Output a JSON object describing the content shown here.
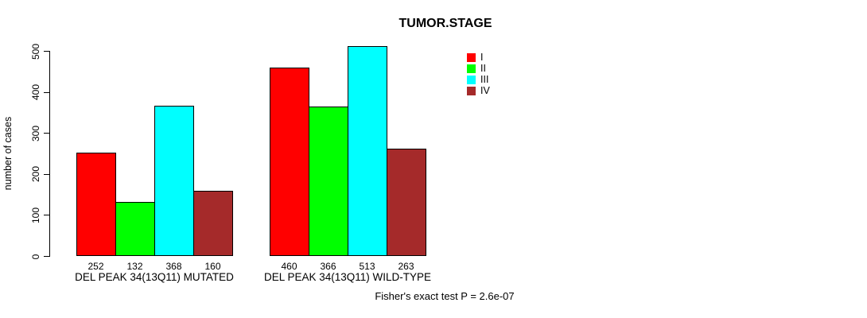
{
  "chart_data": {
    "type": "bar",
    "title": "TUMOR.STAGE",
    "ylabel": "number of cases",
    "xlabel": "",
    "ylim": [
      0,
      550
    ],
    "yticks": [
      0,
      100,
      200,
      300,
      400,
      500
    ],
    "grid": false,
    "legend_position": "top-right-of-plot",
    "series": [
      {
        "name": "I",
        "color": "#ff0000"
      },
      {
        "name": "II",
        "color": "#00ff00"
      },
      {
        "name": "III",
        "color": "#00ffff"
      },
      {
        "name": "IV",
        "color": "#a52a2a"
      }
    ],
    "groups": [
      {
        "label": "DEL PEAK 34(13Q11) MUTATED",
        "values": [
          252,
          132,
          368,
          160
        ]
      },
      {
        "label": "DEL PEAK 34(13Q11) WILD-TYPE",
        "values": [
          460,
          366,
          513,
          263
        ]
      }
    ],
    "annotation": "Fisher's exact test P = 2.6e-07"
  }
}
